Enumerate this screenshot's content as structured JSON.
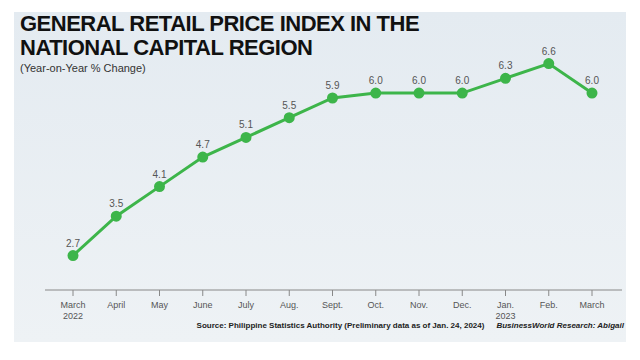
{
  "chart_data": {
    "type": "line",
    "title": "GENERAL RETAIL PRICE INDEX IN THE NATIONAL CAPITAL REGION",
    "subtitle": "(Year-on-Year % Change)",
    "source": "Source: Philippine Statistics Authority (Preliminary data as of Jan. 24, 2024)",
    "credit": "BusinessWorld Research: Abigail",
    "categories": [
      "March 2022",
      "April",
      "May",
      "June",
      "July",
      "Aug.",
      "Sept.",
      "Oct.",
      "Nov.",
      "Dec.",
      "Jan. 2023",
      "Feb.",
      "March"
    ],
    "values": [
      2.7,
      3.5,
      4.1,
      4.7,
      5.1,
      5.5,
      5.9,
      6.0,
      6.0,
      6.0,
      6.3,
      6.6,
      6.0
    ],
    "value_labels": [
      "2.7",
      "3.5",
      "4.1",
      "4.7",
      "5.1",
      "5.5",
      "5.9",
      "6.0",
      "6.0",
      "6.0",
      "6.3",
      "6.6",
      "6.0"
    ],
    "color": "#3db54a",
    "marker": "circle",
    "line_style": "solid",
    "ylim": [
      2,
      7.2
    ],
    "tick_labels": "x",
    "data_labels": true,
    "grid": false
  }
}
